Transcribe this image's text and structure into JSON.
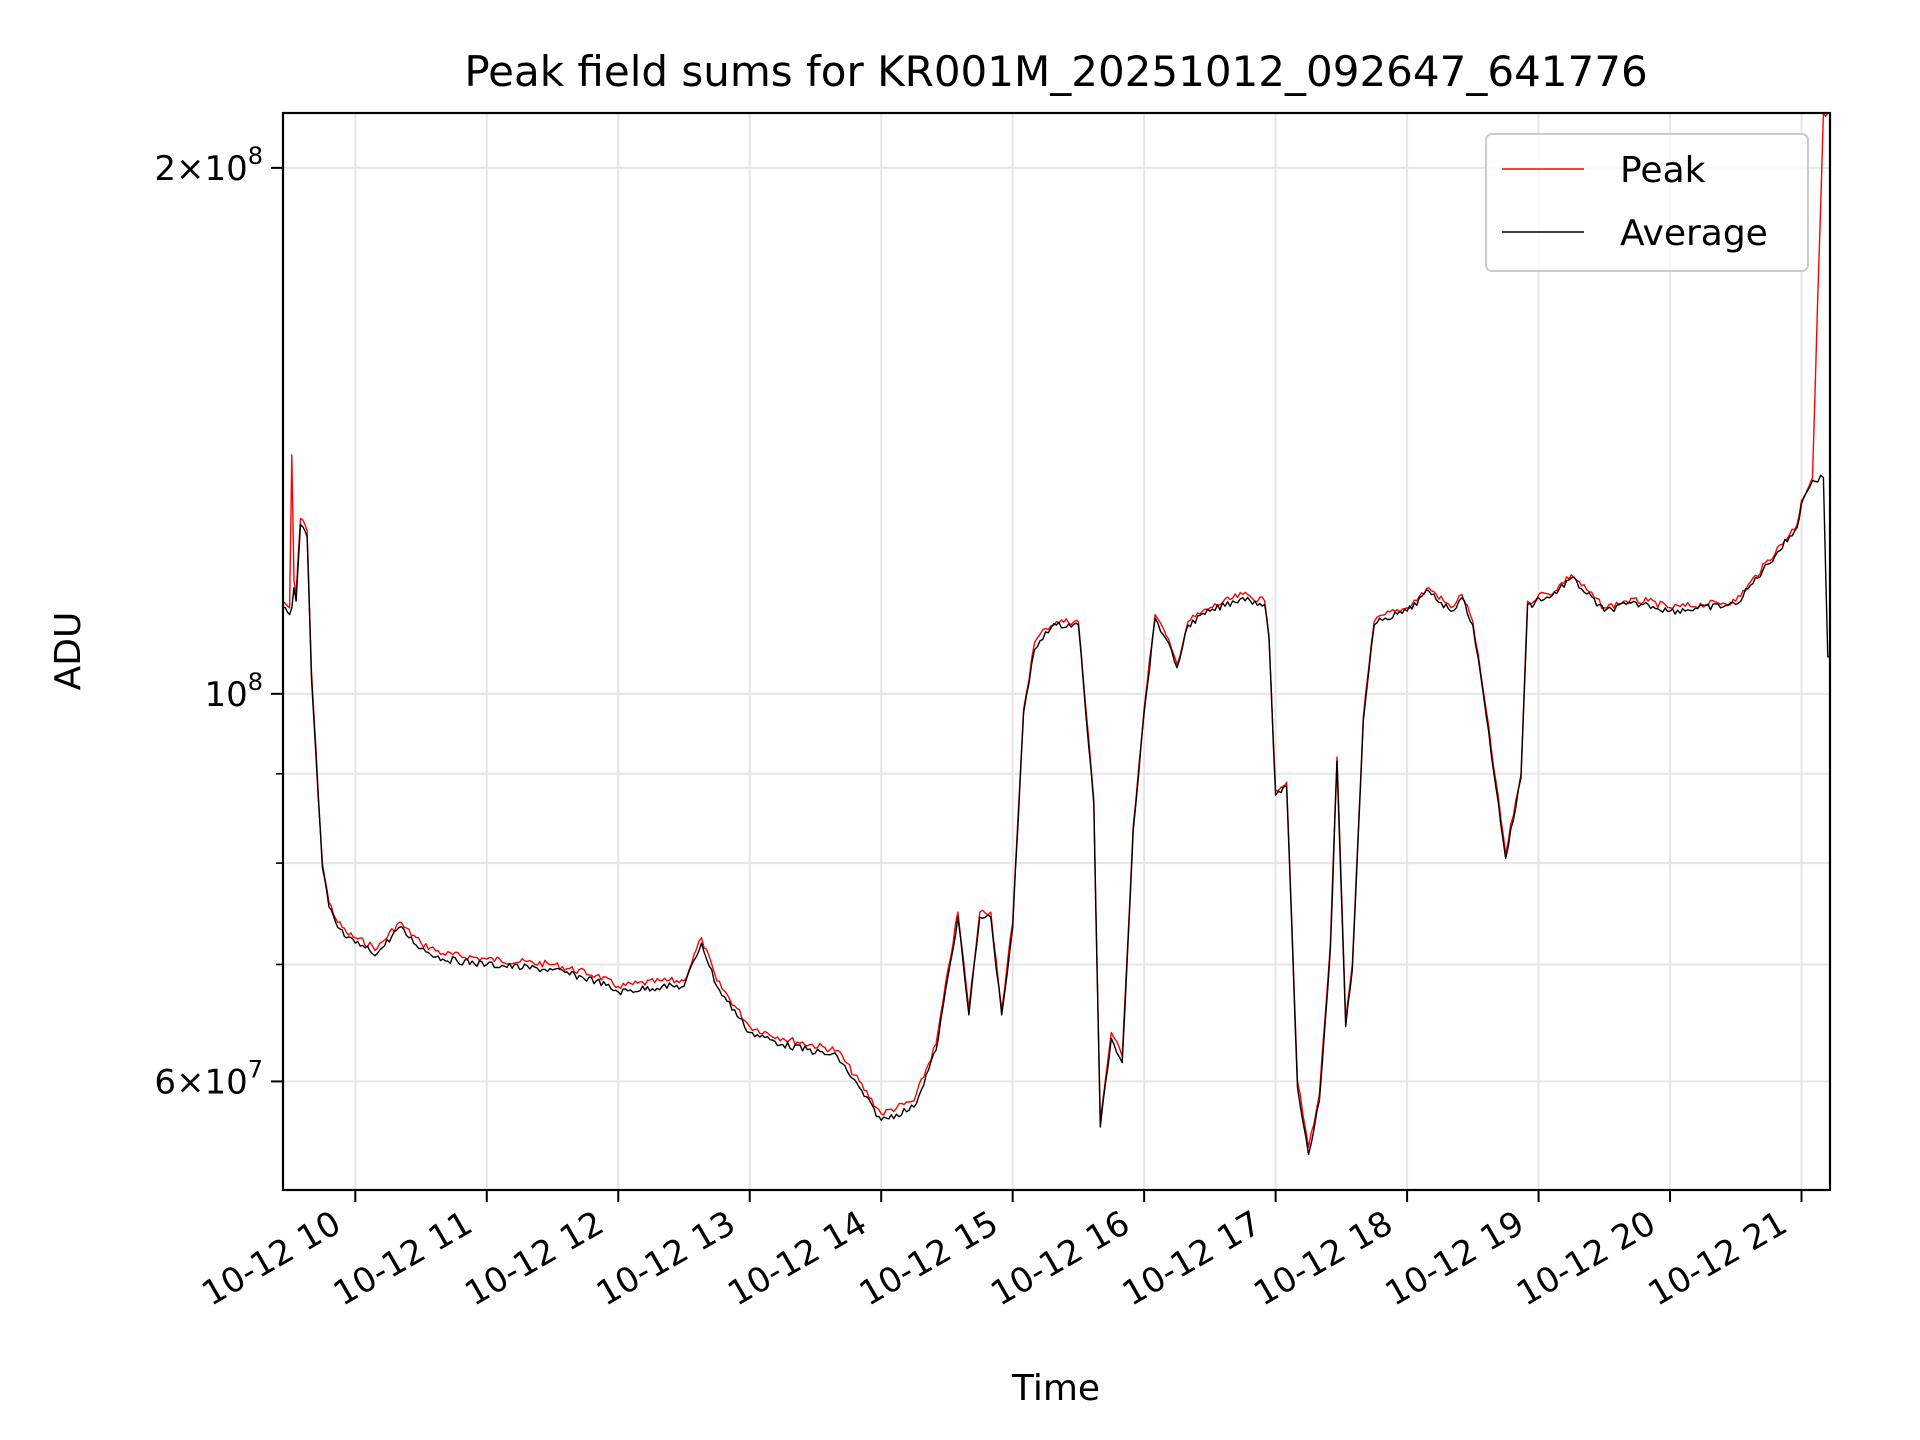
{
  "chart_data": {
    "type": "line",
    "title": "Peak field sums for KR001M_20251012_092647_641776",
    "xlabel": "Time",
    "ylabel": "ADU",
    "yscale": "log",
    "ylim": [
      52000000,
      215000000
    ],
    "xlim": [
      "2025-10-12T09:27",
      "2025-10-12T21:13"
    ],
    "grid": true,
    "legend_position": "top-right",
    "x_ticks": [
      {
        "value": "2025-10-12T10:00",
        "label": "10-12 10"
      },
      {
        "value": "2025-10-12T11:00",
        "label": "10-12 11"
      },
      {
        "value": "2025-10-12T12:00",
        "label": "10-12 12"
      },
      {
        "value": "2025-10-12T13:00",
        "label": "10-12 13"
      },
      {
        "value": "2025-10-12T14:00",
        "label": "10-12 14"
      },
      {
        "value": "2025-10-12T15:00",
        "label": "10-12 15"
      },
      {
        "value": "2025-10-12T16:00",
        "label": "10-12 16"
      },
      {
        "value": "2025-10-12T17:00",
        "label": "10-12 17"
      },
      {
        "value": "2025-10-12T18:00",
        "label": "10-12 18"
      },
      {
        "value": "2025-10-12T19:00",
        "label": "10-12 19"
      },
      {
        "value": "2025-10-12T20:00",
        "label": "10-12 20"
      },
      {
        "value": "2025-10-12T21:00",
        "label": "10-12 21"
      }
    ],
    "y_major_ticks": [
      {
        "value": 60000000,
        "mantissa": "6",
        "exponent": "7"
      },
      {
        "value": 100000000,
        "mantissa": "",
        "exponent": "8"
      },
      {
        "value": 200000000,
        "mantissa": "2",
        "exponent": "8"
      }
    ],
    "y_minor_ticks": [
      70000000,
      80000000,
      90000000
    ],
    "series": [
      {
        "name": "Peak",
        "color": "#ff0000",
        "x": [
          "2025-10-12T09:27",
          "2025-10-12T09:30",
          "2025-10-12T09:31",
          "2025-10-12T09:32",
          "2025-10-12T09:33",
          "2025-10-12T09:35",
          "2025-10-12T09:37",
          "2025-10-12T09:38",
          "2025-10-12T09:40",
          "2025-10-12T09:43",
          "2025-10-12T09:45",
          "2025-10-12T09:48",
          "2025-10-12T09:52",
          "2025-10-12T09:56",
          "2025-10-12T10:00",
          "2025-10-12T10:10",
          "2025-10-12T10:20",
          "2025-10-12T10:30",
          "2025-10-12T10:40",
          "2025-10-12T11:00",
          "2025-10-12T11:30",
          "2025-10-12T11:50",
          "2025-10-12T12:00",
          "2025-10-12T12:20",
          "2025-10-12T12:30",
          "2025-10-12T12:38",
          "2025-10-12T12:45",
          "2025-10-12T13:00",
          "2025-10-12T13:15",
          "2025-10-12T13:40",
          "2025-10-12T14:00",
          "2025-10-12T14:15",
          "2025-10-12T14:25",
          "2025-10-12T14:35",
          "2025-10-12T14:40",
          "2025-10-12T14:45",
          "2025-10-12T14:50",
          "2025-10-12T14:55",
          "2025-10-12T15:00",
          "2025-10-12T15:05",
          "2025-10-12T15:10",
          "2025-10-12T15:15",
          "2025-10-12T15:20",
          "2025-10-12T15:30",
          "2025-10-12T15:37",
          "2025-10-12T15:40",
          "2025-10-12T15:45",
          "2025-10-12T15:50",
          "2025-10-12T15:55",
          "2025-10-12T16:00",
          "2025-10-12T16:05",
          "2025-10-12T16:10",
          "2025-10-12T16:15",
          "2025-10-12T16:20",
          "2025-10-12T16:30",
          "2025-10-12T16:45",
          "2025-10-12T16:55",
          "2025-10-12T16:57",
          "2025-10-12T17:00",
          "2025-10-12T17:05",
          "2025-10-12T17:10",
          "2025-10-12T17:15",
          "2025-10-12T17:20",
          "2025-10-12T17:25",
          "2025-10-12T17:28",
          "2025-10-12T17:32",
          "2025-10-12T17:35",
          "2025-10-12T17:40",
          "2025-10-12T17:45",
          "2025-10-12T17:50",
          "2025-10-12T18:00",
          "2025-10-12T18:10",
          "2025-10-12T18:20",
          "2025-10-12T18:25",
          "2025-10-12T18:30",
          "2025-10-12T18:35",
          "2025-10-12T18:45",
          "2025-10-12T18:52",
          "2025-10-12T18:55",
          "2025-10-12T18:58",
          "2025-10-12T19:00",
          "2025-10-12T19:05",
          "2025-10-12T19:15",
          "2025-10-12T19:30",
          "2025-10-12T19:40",
          "2025-10-12T19:50",
          "2025-10-12T20:00",
          "2025-10-12T20:30",
          "2025-10-12T20:58",
          "2025-10-12T21:00",
          "2025-10-12T21:05",
          "2025-10-12T21:10",
          "2025-10-12T21:12",
          "2025-10-12T21:13"
        ],
        "y": [
          113000000,
          112000000,
          137000000,
          116000000,
          114000000,
          126000000,
          125000000,
          124000000,
          103000000,
          88000000,
          80000000,
          76000000,
          74000000,
          73000000,
          72500000,
          71500000,
          74000000,
          72000000,
          71000000,
          70500000,
          70000000,
          69000000,
          68000000,
          68500000,
          68500000,
          72500000,
          68500000,
          64500000,
          63500000,
          62500000,
          57500000,
          58500000,
          63000000,
          75000000,
          66000000,
          75000000,
          75000000,
          66000000,
          74000000,
          98000000,
          107000000,
          109000000,
          110000000,
          110000000,
          87000000,
          57000000,
          64000000,
          62000000,
          84000000,
          98000000,
          111000000,
          108000000,
          104000000,
          110000000,
          112000000,
          114000000,
          113000000,
          108000000,
          88000000,
          89000000,
          60000000,
          55000000,
          59000000,
          72000000,
          92000000,
          65000000,
          70000000,
          97000000,
          110000000,
          111000000,
          112000000,
          115000000,
          112000000,
          114000000,
          110000000,
          100000000,
          81000000,
          90000000,
          113000000,
          113000000,
          114000000,
          114000000,
          117000000,
          112000000,
          113000000,
          113000000,
          112000000,
          113000000,
          125000000,
          129000000,
          133000000,
          215000000,
          215000000,
          215000000
        ]
      },
      {
        "name": "Average",
        "color": "#000000",
        "x": [
          "2025-10-12T09:27",
          "2025-10-12T09:30",
          "2025-10-12T09:31",
          "2025-10-12T09:32",
          "2025-10-12T09:33",
          "2025-10-12T09:35",
          "2025-10-12T09:37",
          "2025-10-12T09:38",
          "2025-10-12T09:40",
          "2025-10-12T09:43",
          "2025-10-12T09:45",
          "2025-10-12T09:48",
          "2025-10-12T09:52",
          "2025-10-12T09:56",
          "2025-10-12T10:00",
          "2025-10-12T10:10",
          "2025-10-12T10:20",
          "2025-10-12T10:30",
          "2025-10-12T10:40",
          "2025-10-12T11:00",
          "2025-10-12T11:30",
          "2025-10-12T11:50",
          "2025-10-12T12:00",
          "2025-10-12T12:20",
          "2025-10-12T12:30",
          "2025-10-12T12:38",
          "2025-10-12T12:45",
          "2025-10-12T13:00",
          "2025-10-12T13:15",
          "2025-10-12T13:40",
          "2025-10-12T14:00",
          "2025-10-12T14:15",
          "2025-10-12T14:25",
          "2025-10-12T14:35",
          "2025-10-12T14:40",
          "2025-10-12T14:45",
          "2025-10-12T14:50",
          "2025-10-12T14:55",
          "2025-10-12T15:00",
          "2025-10-12T15:05",
          "2025-10-12T15:10",
          "2025-10-12T15:15",
          "2025-10-12T15:20",
          "2025-10-12T15:30",
          "2025-10-12T15:37",
          "2025-10-12T15:40",
          "2025-10-12T15:45",
          "2025-10-12T15:50",
          "2025-10-12T15:55",
          "2025-10-12T16:00",
          "2025-10-12T16:05",
          "2025-10-12T16:10",
          "2025-10-12T16:15",
          "2025-10-12T16:20",
          "2025-10-12T16:30",
          "2025-10-12T16:45",
          "2025-10-12T16:55",
          "2025-10-12T16:57",
          "2025-10-12T17:00",
          "2025-10-12T17:05",
          "2025-10-12T17:10",
          "2025-10-12T17:15",
          "2025-10-12T17:20",
          "2025-10-12T17:25",
          "2025-10-12T17:28",
          "2025-10-12T17:32",
          "2025-10-12T17:35",
          "2025-10-12T17:40",
          "2025-10-12T17:45",
          "2025-10-12T17:50",
          "2025-10-12T18:00",
          "2025-10-12T18:10",
          "2025-10-12T18:20",
          "2025-10-12T18:25",
          "2025-10-12T18:30",
          "2025-10-12T18:35",
          "2025-10-12T18:45",
          "2025-10-12T18:52",
          "2025-10-12T18:55",
          "2025-10-12T18:58",
          "2025-10-12T19:00",
          "2025-10-12T19:05",
          "2025-10-12T19:15",
          "2025-10-12T19:30",
          "2025-10-12T19:40",
          "2025-10-12T19:50",
          "2025-10-12T20:00",
          "2025-10-12T20:30",
          "2025-10-12T20:58",
          "2025-10-12T21:00",
          "2025-10-12T21:05",
          "2025-10-12T21:10",
          "2025-10-12T21:12",
          "2025-10-12T21:13"
        ],
        "y": [
          112000000,
          111000000,
          112000000,
          115000000,
          113000000,
          125000000,
          124000000,
          123000000,
          102000000,
          87500000,
          79500000,
          75500000,
          73500000,
          72500000,
          72000000,
          71000000,
          73500000,
          71500000,
          70500000,
          70000000,
          69500000,
          68500000,
          67500000,
          68000000,
          68000000,
          72000000,
          68000000,
          64000000,
          63000000,
          62000000,
          57000000,
          58000000,
          62500000,
          74500000,
          65500000,
          74500000,
          74500000,
          65500000,
          73500000,
          97500000,
          106000000,
          108500000,
          109500000,
          109500000,
          86500000,
          56500000,
          63500000,
          61500000,
          83500000,
          97500000,
          110500000,
          107500000,
          103500000,
          109500000,
          111500000,
          113500000,
          112500000,
          107500000,
          87500000,
          88500000,
          59500000,
          54500000,
          58500000,
          71500000,
          91500000,
          64500000,
          69500000,
          96500000,
          109500000,
          110500000,
          111500000,
          114500000,
          111500000,
          113500000,
          109500000,
          99500000,
          80500000,
          89500000,
          112500000,
          112500000,
          113500000,
          113500000,
          116500000,
          111500000,
          112500000,
          112500000,
          111500000,
          112500000,
          124500000,
          128500000,
          132500000,
          133000000,
          105000000,
          105000000
        ]
      }
    ]
  }
}
